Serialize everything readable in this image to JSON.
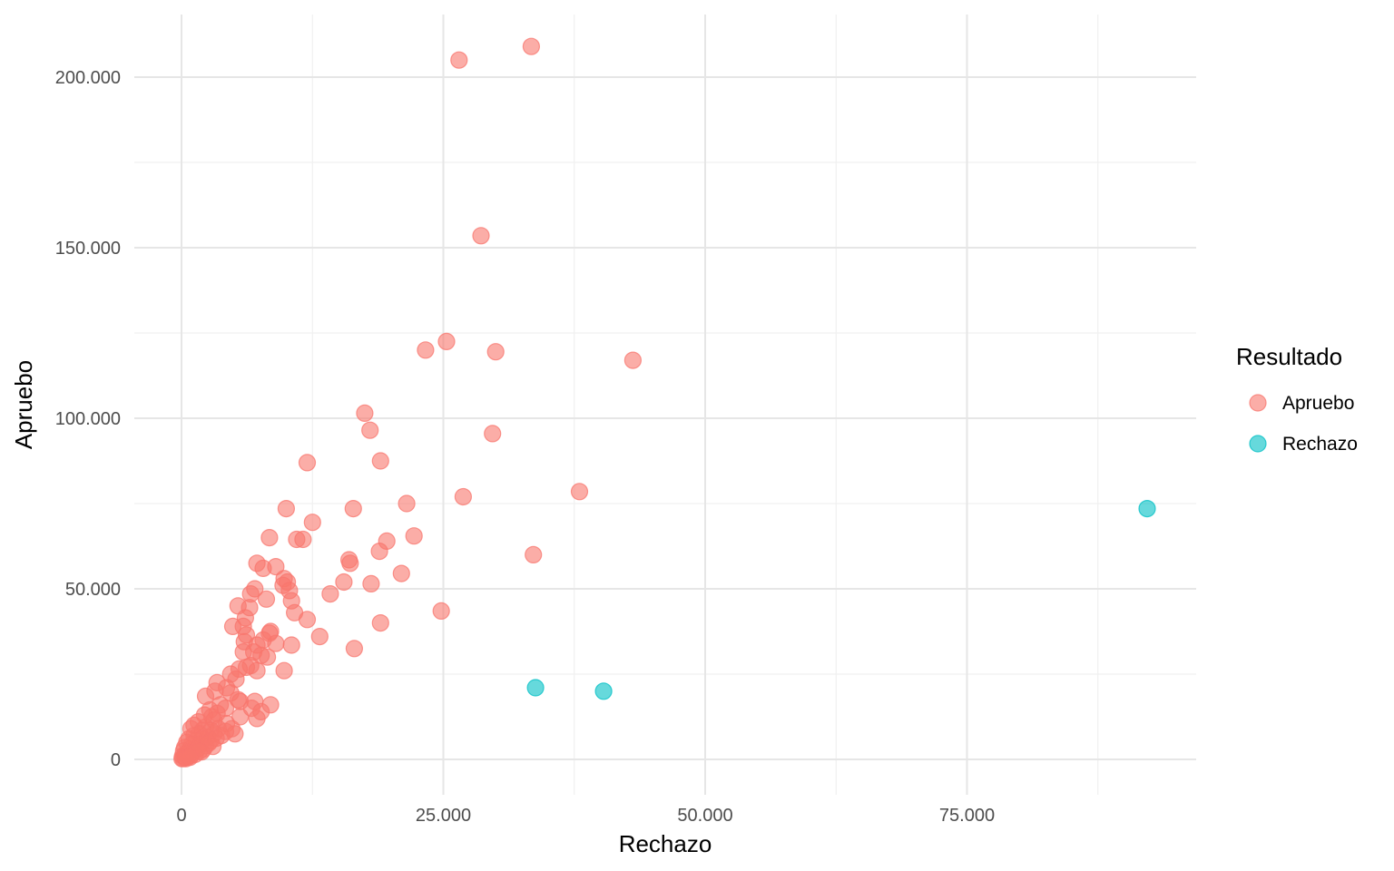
{
  "chart_data": {
    "type": "scatter",
    "xlabel": "Rechazo",
    "ylabel": "Apruebo",
    "xlim": [
      -4000,
      97000
    ],
    "ylim": [
      -10000,
      219000
    ],
    "x_ticks": [
      0,
      25000,
      50000,
      75000
    ],
    "x_tick_labels": [
      "0",
      "25.000",
      "50.000",
      "75.000"
    ],
    "y_ticks": [
      0,
      50000,
      100000,
      150000,
      200000
    ],
    "y_tick_labels": [
      "0",
      "50.000",
      "100.000",
      "150.000",
      "200.000"
    ],
    "x_minor": [
      12500,
      37500,
      62500,
      87500
    ],
    "y_minor": [
      25000,
      75000,
      125000,
      175000
    ],
    "grid": true,
    "legend": {
      "title": "Resultado",
      "placement": "right",
      "entries": [
        {
          "label": "Apruebo",
          "color": "#F8766D"
        },
        {
          "label": "Rechazo",
          "color": "#00BFC4"
        }
      ]
    },
    "series": [
      {
        "name": "Apruebo",
        "color": "#F8766D",
        "points": [
          [
            33400,
            209000
          ],
          [
            26500,
            205000
          ],
          [
            28600,
            153500
          ],
          [
            25300,
            122500
          ],
          [
            23300,
            120000
          ],
          [
            30000,
            119500
          ],
          [
            43100,
            117000
          ],
          [
            17500,
            101500
          ],
          [
            18000,
            96500
          ],
          [
            29700,
            95500
          ],
          [
            12000,
            87000
          ],
          [
            19000,
            87500
          ],
          [
            38000,
            78500
          ],
          [
            26900,
            77000
          ],
          [
            21500,
            75000
          ],
          [
            10000,
            73500
          ],
          [
            16400,
            73500
          ],
          [
            12500,
            69500
          ],
          [
            8400,
            65000
          ],
          [
            11000,
            64500
          ],
          [
            11600,
            64500
          ],
          [
            22200,
            65500
          ],
          [
            19600,
            64000
          ],
          [
            18900,
            61000
          ],
          [
            33600,
            60000
          ],
          [
            16000,
            58500
          ],
          [
            16100,
            57500
          ],
          [
            7200,
            57500
          ],
          [
            7800,
            56000
          ],
          [
            9000,
            56500
          ],
          [
            21000,
            54500
          ],
          [
            9800,
            53000
          ],
          [
            10100,
            52000
          ],
          [
            15500,
            52000
          ],
          [
            18100,
            51500
          ],
          [
            9700,
            51000
          ],
          [
            10300,
            49500
          ],
          [
            14200,
            48500
          ],
          [
            6600,
            48500
          ],
          [
            7000,
            50000
          ],
          [
            8100,
            47000
          ],
          [
            10500,
            46500
          ],
          [
            5400,
            45000
          ],
          [
            6500,
            44500
          ],
          [
            24800,
            43500
          ],
          [
            10800,
            43000
          ],
          [
            6100,
            41500
          ],
          [
            12000,
            41000
          ],
          [
            19000,
            40000
          ],
          [
            4900,
            39000
          ],
          [
            5900,
            39000
          ],
          [
            8500,
            37500
          ],
          [
            8400,
            37000
          ],
          [
            6200,
            36500
          ],
          [
            13200,
            36000
          ],
          [
            7800,
            35000
          ],
          [
            6000,
            34500
          ],
          [
            9000,
            34000
          ],
          [
            10500,
            33500
          ],
          [
            7200,
            33500
          ],
          [
            16500,
            32500
          ],
          [
            5900,
            31500
          ],
          [
            6900,
            31500
          ],
          [
            8200,
            30000
          ],
          [
            7600,
            30500
          ],
          [
            6600,
            27500
          ],
          [
            6200,
            27000
          ],
          [
            5500,
            26500
          ],
          [
            7200,
            26000
          ],
          [
            9800,
            26000
          ],
          [
            4700,
            25000
          ],
          [
            5200,
            23500
          ],
          [
            3400,
            22500
          ],
          [
            4300,
            21000
          ],
          [
            3200,
            20000
          ],
          [
            4700,
            19500
          ],
          [
            2300,
            18500
          ],
          [
            5400,
            17500
          ],
          [
            7000,
            17000
          ],
          [
            5600,
            17000
          ],
          [
            3700,
            16000
          ],
          [
            8500,
            16000
          ],
          [
            4200,
            15000
          ],
          [
            2700,
            14500
          ],
          [
            6700,
            15000
          ],
          [
            3400,
            13500
          ],
          [
            5600,
            12500
          ],
          [
            7200,
            12000
          ],
          [
            7600,
            14000
          ],
          [
            2200,
            13000
          ],
          [
            2900,
            12500
          ],
          [
            1600,
            11000
          ],
          [
            3100,
            11500
          ],
          [
            4300,
            10500
          ],
          [
            1200,
            10000
          ],
          [
            4800,
            9000
          ],
          [
            5100,
            7500
          ],
          [
            2300,
            9500
          ],
          [
            3500,
            9000
          ],
          [
            900,
            9000
          ],
          [
            2000,
            8500
          ],
          [
            2800,
            8500
          ],
          [
            1700,
            7500
          ],
          [
            3100,
            7500
          ],
          [
            1200,
            7000
          ],
          [
            2500,
            6500
          ],
          [
            700,
            6000
          ],
          [
            2000,
            6000
          ],
          [
            1400,
            5500
          ],
          [
            2800,
            5500
          ],
          [
            500,
            5000
          ],
          [
            1000,
            4500
          ],
          [
            1800,
            4500
          ],
          [
            2300,
            4000
          ],
          [
            300,
            3500
          ],
          [
            800,
            3000
          ],
          [
            1500,
            3000
          ],
          [
            2100,
            3000
          ],
          [
            200,
            2500
          ],
          [
            600,
            2000
          ],
          [
            1100,
            2000
          ],
          [
            400,
            1500
          ],
          [
            900,
            1200
          ],
          [
            100,
            1000
          ],
          [
            300,
            600
          ],
          [
            600,
            700
          ],
          [
            150,
            300
          ],
          [
            50,
            200
          ],
          [
            400,
            200
          ],
          [
            1300,
            1500
          ],
          [
            1900,
            2200
          ],
          [
            2600,
            4800
          ],
          [
            3300,
            6200
          ],
          [
            3800,
            7000
          ],
          [
            4200,
            8200
          ],
          [
            3000,
            3800
          ],
          [
            1700,
            2400
          ],
          [
            800,
            600
          ]
        ]
      },
      {
        "name": "Rechazo",
        "color": "#00BFC4",
        "points": [
          [
            92200,
            73500
          ],
          [
            33800,
            21000
          ],
          [
            40300,
            20000
          ]
        ]
      }
    ]
  }
}
